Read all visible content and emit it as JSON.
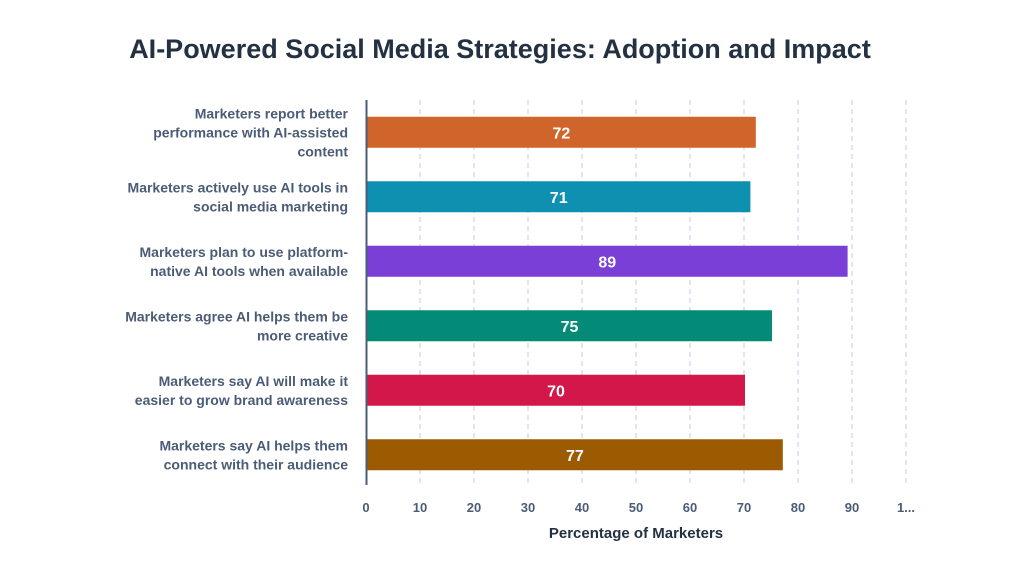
{
  "chart_data": {
    "type": "bar",
    "orientation": "horizontal",
    "title": "AI-Powered Social Media Strategies: Adoption and Impact",
    "xlabel": "Percentage of Marketers",
    "ylabel": "",
    "xlim": [
      0,
      100
    ],
    "ticks": [
      "0",
      "10",
      "20",
      "30",
      "40",
      "50",
      "60",
      "70",
      "80",
      "90",
      "1..."
    ],
    "categories": [
      [
        "Marketers report better",
        "performance with AI-assisted",
        "content"
      ],
      [
        "Marketers actively use AI tools in",
        "social media marketing"
      ],
      [
        "Marketers plan to use platform-",
        "native AI tools when available"
      ],
      [
        "Marketers agree AI helps them be",
        "more creative"
      ],
      [
        "Marketers say AI will make it",
        "easier to grow brand awareness"
      ],
      [
        "Marketers say AI helps them",
        "connect with their audience"
      ]
    ],
    "values": [
      72,
      71,
      89,
      75,
      70,
      77
    ],
    "colors": [
      "#d0652b",
      "#0e91b0",
      "#7a3fd6",
      "#048b78",
      "#d3174a",
      "#9c5b00"
    ],
    "grid": true
  }
}
